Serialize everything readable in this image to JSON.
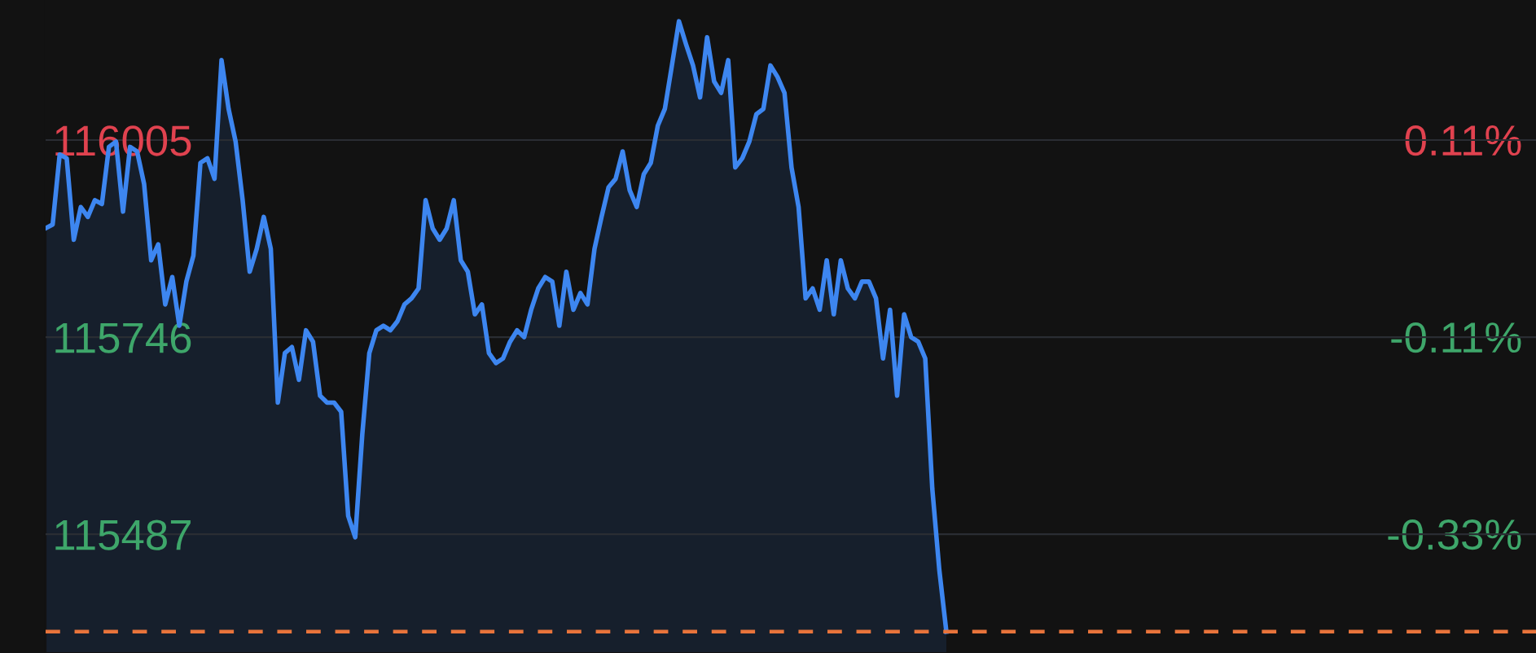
{
  "chart_data": {
    "type": "area",
    "categories": [
      null,
      null,
      null,
      null,
      null,
      null,
      null,
      null,
      null,
      null,
      null,
      null,
      null,
      null,
      null,
      null,
      null,
      null,
      null,
      null,
      null,
      null,
      null,
      null,
      null,
      null,
      null,
      null,
      null,
      null,
      null,
      null,
      null,
      null,
      null,
      null,
      null,
      null,
      null,
      null,
      null,
      null,
      null,
      null,
      null,
      null,
      null,
      null,
      null,
      null,
      null,
      null,
      null,
      null,
      null,
      null,
      null,
      null,
      null,
      null,
      null,
      null,
      null,
      null,
      null,
      null,
      null,
      null,
      null,
      null,
      null,
      null,
      null,
      null,
      null,
      null,
      null,
      null,
      null,
      null,
      null,
      null,
      null,
      null,
      null,
      null,
      null,
      null,
      null,
      null,
      null,
      null,
      null,
      null,
      null,
      null,
      null,
      null,
      null,
      null,
      null,
      null,
      null,
      null,
      null,
      null,
      null,
      null,
      null,
      null,
      null,
      null,
      null,
      null,
      null,
      null,
      null,
      null,
      null,
      null,
      null,
      null,
      null,
      null,
      null,
      null,
      null,
      null,
      null
    ],
    "series": [
      {
        "color": "#3d86f0",
        "values": [
          115889,
          115894,
          115986,
          115981,
          115874,
          115917,
          115904,
          115926,
          115921,
          115996,
          116003,
          115911,
          115996,
          115990,
          115947,
          115847,
          115868,
          115789,
          115825,
          115761,
          115819,
          115853,
          115975,
          115981,
          115954,
          116110,
          116046,
          116003,
          115926,
          115832,
          115862,
          115904,
          115862,
          115660,
          115725,
          115733,
          115690,
          115755,
          115740,
          115669,
          115660,
          115660,
          115648,
          115511,
          115483,
          115618,
          115725,
          115755,
          115761,
          115755,
          115767,
          115789,
          115797,
          115810,
          115926,
          115889,
          115874,
          115889,
          115926,
          115847,
          115832,
          115776,
          115789,
          115725,
          115712,
          115718,
          115740,
          115755,
          115746,
          115782,
          115810,
          115825,
          115819,
          115761,
          115832,
          115782,
          115804,
          115789,
          115862,
          115904,
          115943,
          115954,
          115990,
          115939,
          115917,
          115960,
          115975,
          116024,
          116046,
          116103,
          116161,
          116131,
          116103,
          116061,
          116140,
          116082,
          116067,
          116110,
          115969,
          115981,
          116003,
          116039,
          116046,
          116103,
          116088,
          116067,
          115969,
          115917,
          115797,
          115810,
          115782,
          115847,
          115776,
          115847,
          115810,
          115797,
          115819,
          115819,
          115797,
          115718,
          115782,
          115669,
          115776,
          115746,
          115740,
          115718,
          115547,
          115440,
          115359
        ]
      }
    ],
    "ylim": [
      115331,
      116189
    ],
    "yticks": [
      116005,
      115746,
      115487
    ],
    "y2lim": [
      -0.463,
      0.266
    ],
    "y2ticks": [
      {
        "value": 0.11,
        "label": "0.11%"
      },
      {
        "value": -0.11,
        "label": "-0.11%"
      },
      {
        "value": -0.33,
        "label": "-0.33%"
      }
    ],
    "grid": "y",
    "ref_lines": [
      {
        "axis": "y",
        "value": 115359,
        "color": "#e8743b",
        "line_style": "dashed"
      }
    ]
  }
}
